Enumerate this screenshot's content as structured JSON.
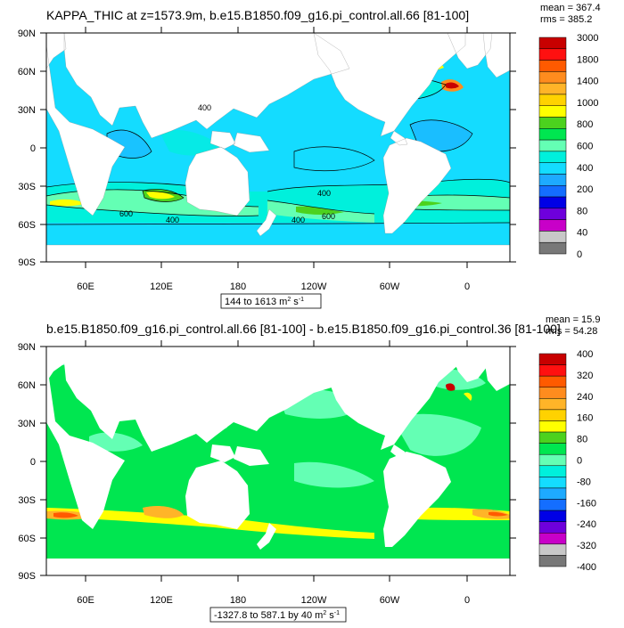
{
  "panels": [
    {
      "id": "top",
      "title": "KAPPA_THIC at z=1573.9m, b.e15.B1850.f09_g16.pi_control.all.66 [81-100]",
      "stats": {
        "mean": "mean = 367.4",
        "rms": "rms = 385.2"
      },
      "range_label": "144 to 1613 m",
      "range_units": {
        "sup1": "2",
        "s": " s",
        "sup2": "-1"
      },
      "colorbar": {
        "labels": [
          "3000",
          "1800",
          "1400",
          "1000",
          "800",
          "600",
          "400",
          "200",
          "80",
          "40",
          "0"
        ],
        "colors": [
          "#c80000",
          "#ff1010",
          "#ff5a00",
          "#ff8c1e",
          "#ffb428",
          "#ffd200",
          "#ffff00",
          "#4cd21e",
          "#00e650",
          "#64ffb4",
          "#00f0dc",
          "#14dcff",
          "#1eaaff",
          "#146eff",
          "#0000e6",
          "#6e00dc",
          "#c800c8",
          "#c8c8c8",
          "#787878"
        ]
      },
      "contour_labels": [
        "400",
        "400",
        "600",
        "400",
        "400",
        "600"
      ]
    },
    {
      "id": "bottom",
      "title": "b.e15.B1850.f09_g16.pi_control.all.66 [81-100] - b.e15.B1850.f09_g16.pi_control.36 [81-100]",
      "stats": {
        "mean": "mean = 15.9",
        "rms": "rms = 54.28"
      },
      "range_label": "-1327.8 to 587.1 by 40 m",
      "range_units": {
        "sup1": "2",
        "s": " s",
        "sup2": "-1"
      },
      "colorbar": {
        "labels": [
          "400",
          "320",
          "240",
          "160",
          "80",
          "0",
          "-80",
          "-160",
          "-240",
          "-320",
          "-400"
        ],
        "colors": [
          "#c80000",
          "#ff1010",
          "#ff5a00",
          "#ff8c1e",
          "#ffb428",
          "#ffd200",
          "#ffff00",
          "#4cd21e",
          "#00e650",
          "#64ffb4",
          "#00f0dc",
          "#14dcff",
          "#1eaaff",
          "#146eff",
          "#0000e6",
          "#6e00dc",
          "#c800c8",
          "#c8c8c8",
          "#787878"
        ]
      },
      "contour_labels": []
    }
  ],
  "axes": {
    "lat_labels": [
      "90N",
      "60N",
      "30N",
      "0",
      "30S",
      "60S",
      "90S"
    ],
    "lon_labels": [
      "60E",
      "120E",
      "180",
      "120W",
      "60W",
      "0"
    ]
  }
}
